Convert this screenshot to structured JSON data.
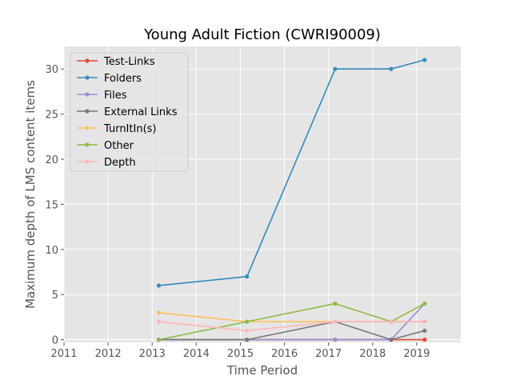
{
  "chart_data": {
    "type": "line",
    "title": "Young Adult Fiction (CWRI90009)",
    "xlabel": "Time Period",
    "ylabel": "Maximum depth of LMS content items",
    "xlim": [
      2011,
      2020
    ],
    "ylim": [
      -0.3,
      32.5
    ],
    "xticks": [
      2011,
      2012,
      2013,
      2014,
      2015,
      2016,
      2017,
      2018,
      2019
    ],
    "yticks": [
      0,
      5,
      10,
      15,
      20,
      25,
      30
    ],
    "grid": true,
    "legend_position": "upper-left",
    "x": [
      2013.15,
      2015.15,
      2017.15,
      2018.42,
      2019.18
    ],
    "series": [
      {
        "name": "Test-Links",
        "color": "#E24A33",
        "values": [
          0,
          0,
          0,
          0,
          0
        ]
      },
      {
        "name": "Folders",
        "color": "#348ABD",
        "values": [
          6,
          7,
          30,
          30,
          31
        ]
      },
      {
        "name": "Files",
        "color": "#988ED5",
        "values": [
          0,
          0,
          0,
          0,
          4
        ]
      },
      {
        "name": "External Links",
        "color": "#777777",
        "values": [
          0,
          0,
          2,
          0,
          1
        ]
      },
      {
        "name": "TurnItIn(s)",
        "color": "#FBC15E",
        "values": [
          3,
          2,
          2,
          2,
          2
        ]
      },
      {
        "name": "Other",
        "color": "#8EBA42",
        "values": [
          0,
          2,
          4,
          2,
          4
        ]
      },
      {
        "name": "Depth",
        "color": "#FFB5B8",
        "values": [
          2,
          1,
          2,
          2,
          2
        ]
      }
    ]
  }
}
